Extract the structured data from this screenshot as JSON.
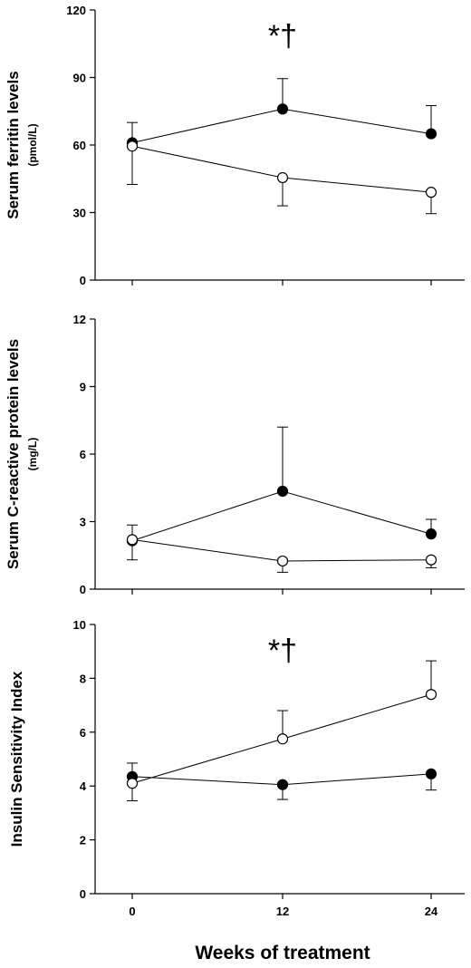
{
  "figure": {
    "xlabel": "Weeks of treatment"
  },
  "chart_data": [
    {
      "type": "line",
      "ylabel": "Serum ferritin levels",
      "yunit": "(pmol/L)",
      "x": [
        0,
        12,
        24
      ],
      "xticks": [
        "0",
        "12",
        "24"
      ],
      "ylim": [
        0,
        120
      ],
      "yticks": [
        0,
        30,
        60,
        90,
        120
      ],
      "annotation": "*†",
      "annotation_at_x": 12,
      "series": [
        {
          "marker": "filled",
          "values": [
            61,
            76,
            65
          ],
          "errors": [
            9,
            13.5,
            12.5
          ],
          "error_direction": "up"
        },
        {
          "marker": "open",
          "values": [
            59.5,
            45.5,
            39
          ],
          "errors": [
            17,
            12.5,
            9.5
          ],
          "error_direction": "down"
        }
      ]
    },
    {
      "type": "line",
      "ylabel": "Serum C-reactive protein levels",
      "yunit": "(mg/L)",
      "x": [
        0,
        12,
        24
      ],
      "xticks": [
        "0",
        "12",
        "24"
      ],
      "ylim": [
        0,
        12
      ],
      "yticks": [
        0,
        3,
        6,
        9,
        12
      ],
      "series": [
        {
          "marker": "filled",
          "values": [
            2.15,
            4.35,
            2.45
          ],
          "errors": [
            0.7,
            2.85,
            0.65
          ],
          "error_direction": "up"
        },
        {
          "marker": "open",
          "values": [
            2.2,
            1.25,
            1.3
          ],
          "errors": [
            0.9,
            0.5,
            0.35
          ],
          "error_direction": "down"
        }
      ]
    },
    {
      "type": "line",
      "ylabel": "Insulin Sensitivity Index",
      "yunit": "",
      "x": [
        0,
        12,
        24
      ],
      "xticks": [
        "0",
        "12",
        "24"
      ],
      "ylim": [
        0,
        10
      ],
      "yticks": [
        0,
        2,
        4,
        6,
        8,
        10
      ],
      "annotation": "*†",
      "annotation_at_x": 12,
      "series": [
        {
          "marker": "filled",
          "values": [
            4.35,
            4.05,
            4.45
          ],
          "errors": [
            0.5,
            0.55,
            0.6
          ],
          "error_direction": "mixed"
        },
        {
          "marker": "open",
          "values": [
            4.1,
            5.75,
            7.4
          ],
          "errors": [
            0.65,
            1.05,
            1.25
          ],
          "error_direction": "mixed"
        }
      ]
    }
  ]
}
